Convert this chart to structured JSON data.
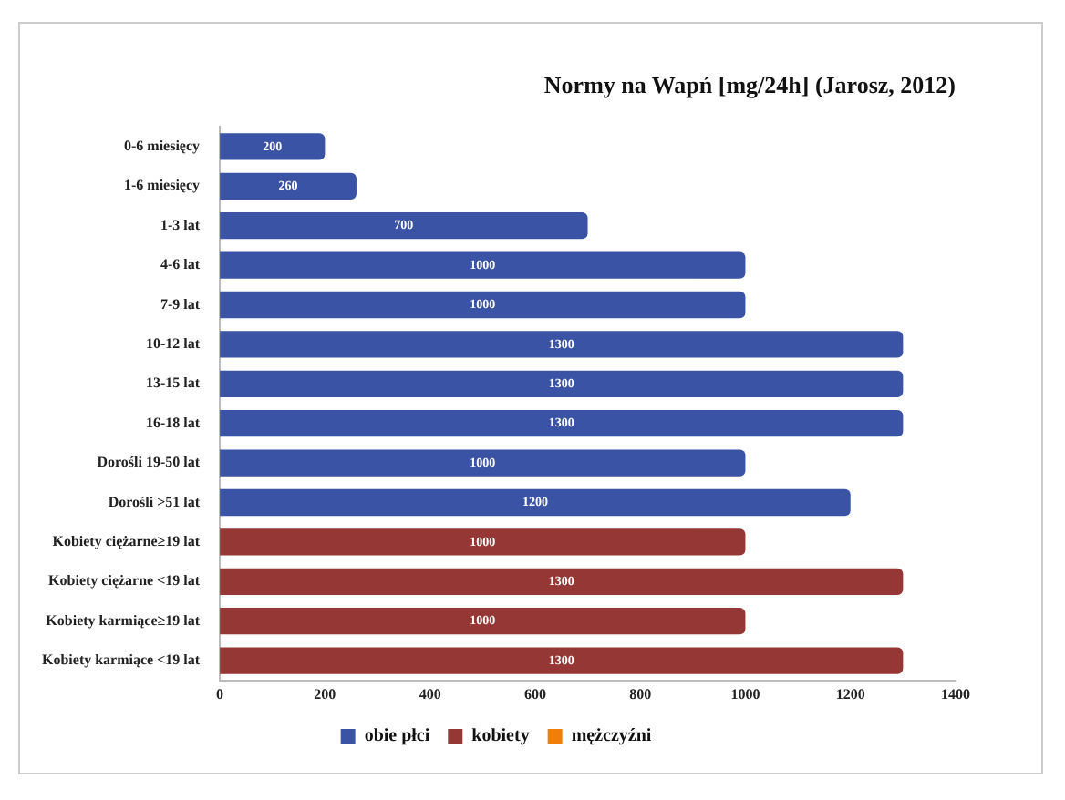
{
  "chart_data": {
    "type": "bar",
    "orientation": "horizontal",
    "stacked": true,
    "title": "Normy na Wapń [mg/24h] (Jarosz, 2012)",
    "categories": [
      "0-6 miesięcy",
      "1-6 miesięcy",
      "1-3 lat",
      "4-6 lat",
      "7-9 lat",
      "10-12 lat",
      "13-15 lat",
      "16-18 lat",
      "Dorośli 19-50 lat",
      "Dorośli >51 lat",
      "Kobiety ciężarne≥19 lat",
      "Kobiety ciężarne <19 lat",
      "Kobiety karmiące≥19 lat",
      "Kobiety karmiące <19 lat"
    ],
    "series": [
      {
        "name": "obie płci",
        "color": "#3a53a4",
        "values": [
          200,
          260,
          700,
          1000,
          1000,
          1300,
          1300,
          1300,
          1000,
          1200,
          null,
          null,
          null,
          null
        ]
      },
      {
        "name": "kobiety",
        "color": "#953735",
        "values": [
          null,
          null,
          null,
          null,
          null,
          null,
          null,
          null,
          null,
          null,
          1000,
          1300,
          1000,
          1300
        ]
      },
      {
        "name": "mężczyźni",
        "color": "#f07f09",
        "values": [
          null,
          null,
          null,
          null,
          null,
          null,
          null,
          null,
          null,
          null,
          null,
          null,
          null,
          null
        ]
      }
    ],
    "xlim": [
      0,
      1400
    ],
    "xticks": [
      0,
      200,
      400,
      600,
      800,
      1000,
      1200,
      1400
    ],
    "grid": false,
    "legend": "bottom",
    "data_labels": true
  }
}
